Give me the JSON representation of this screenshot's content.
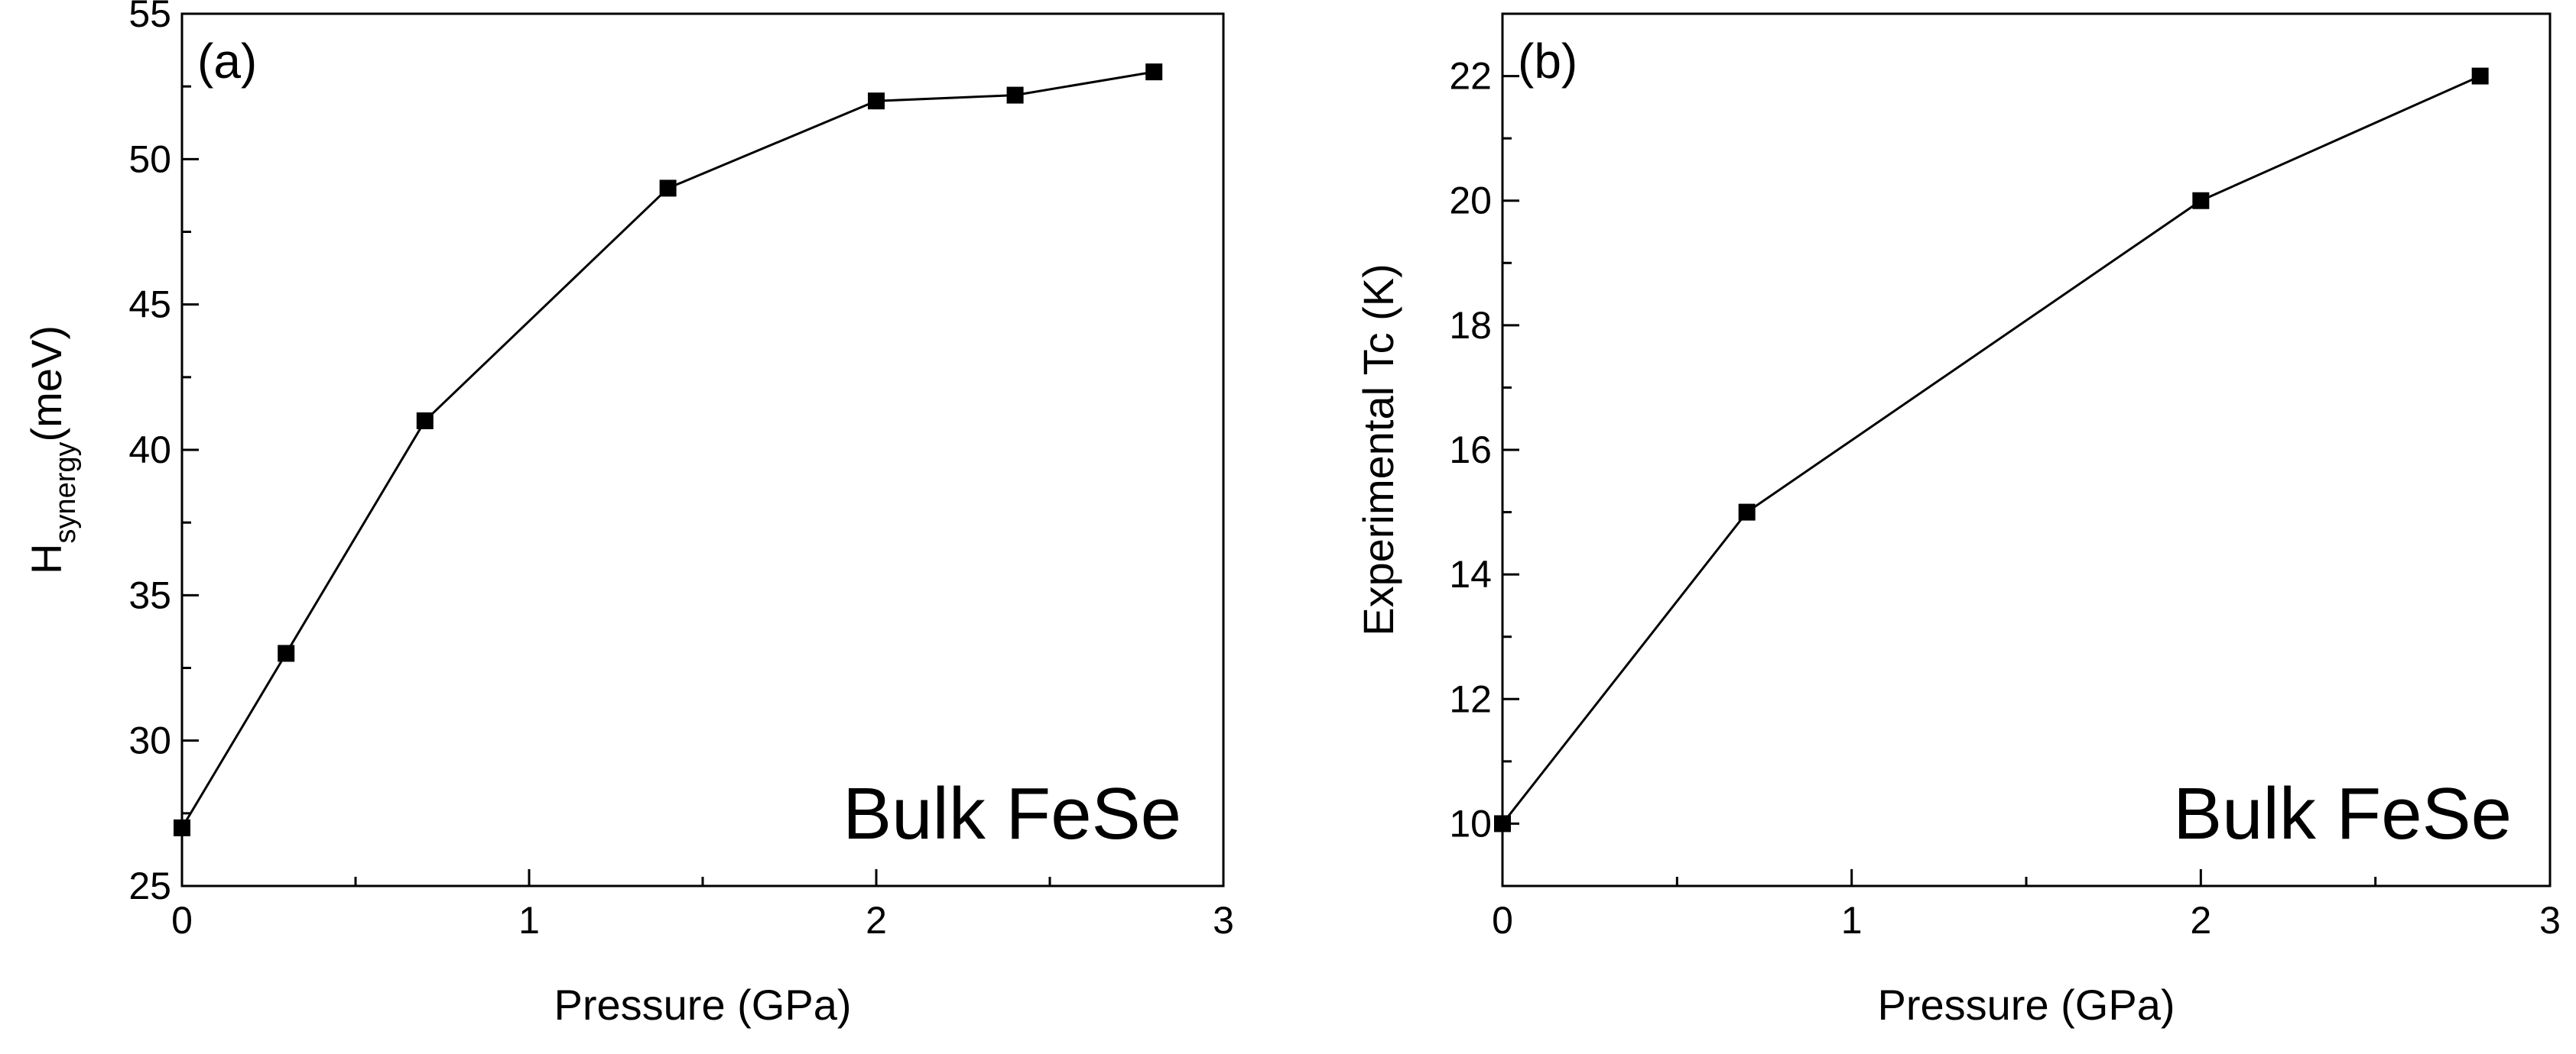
{
  "chart_data": [
    {
      "type": "line",
      "panel_label": "(a)",
      "xlabel": "Pressure (GPa)",
      "ylabel_main": "H",
      "ylabel_sub": "synergy",
      "ylabel_unit": "(meV)",
      "annotation": "Bulk FeSe",
      "xlim": [
        0,
        3
      ],
      "ylim": [
        25,
        55
      ],
      "xticks": [
        0,
        1,
        2,
        3
      ],
      "yticks": [
        25,
        30,
        35,
        40,
        45,
        50,
        55
      ],
      "x": [
        0,
        0.3,
        0.7,
        1.4,
        2.0,
        2.4,
        2.8
      ],
      "y": [
        27,
        33,
        41,
        49,
        52,
        52.2,
        53
      ],
      "marker": "square",
      "color": "#000000"
    },
    {
      "type": "line",
      "panel_label": "(b)",
      "xlabel": "Pressure (GPa)",
      "ylabel": "Experimental Tc (K)",
      "annotation": "Bulk FeSe",
      "xlim": [
        0,
        3
      ],
      "ylim": [
        9,
        23
      ],
      "xticks": [
        0,
        1,
        2,
        3
      ],
      "yticks": [
        10,
        12,
        14,
        16,
        18,
        20,
        22
      ],
      "x": [
        0,
        0.7,
        2.0,
        2.8
      ],
      "y": [
        10,
        15,
        20,
        22
      ],
      "marker": "square",
      "color": "#000000"
    }
  ]
}
